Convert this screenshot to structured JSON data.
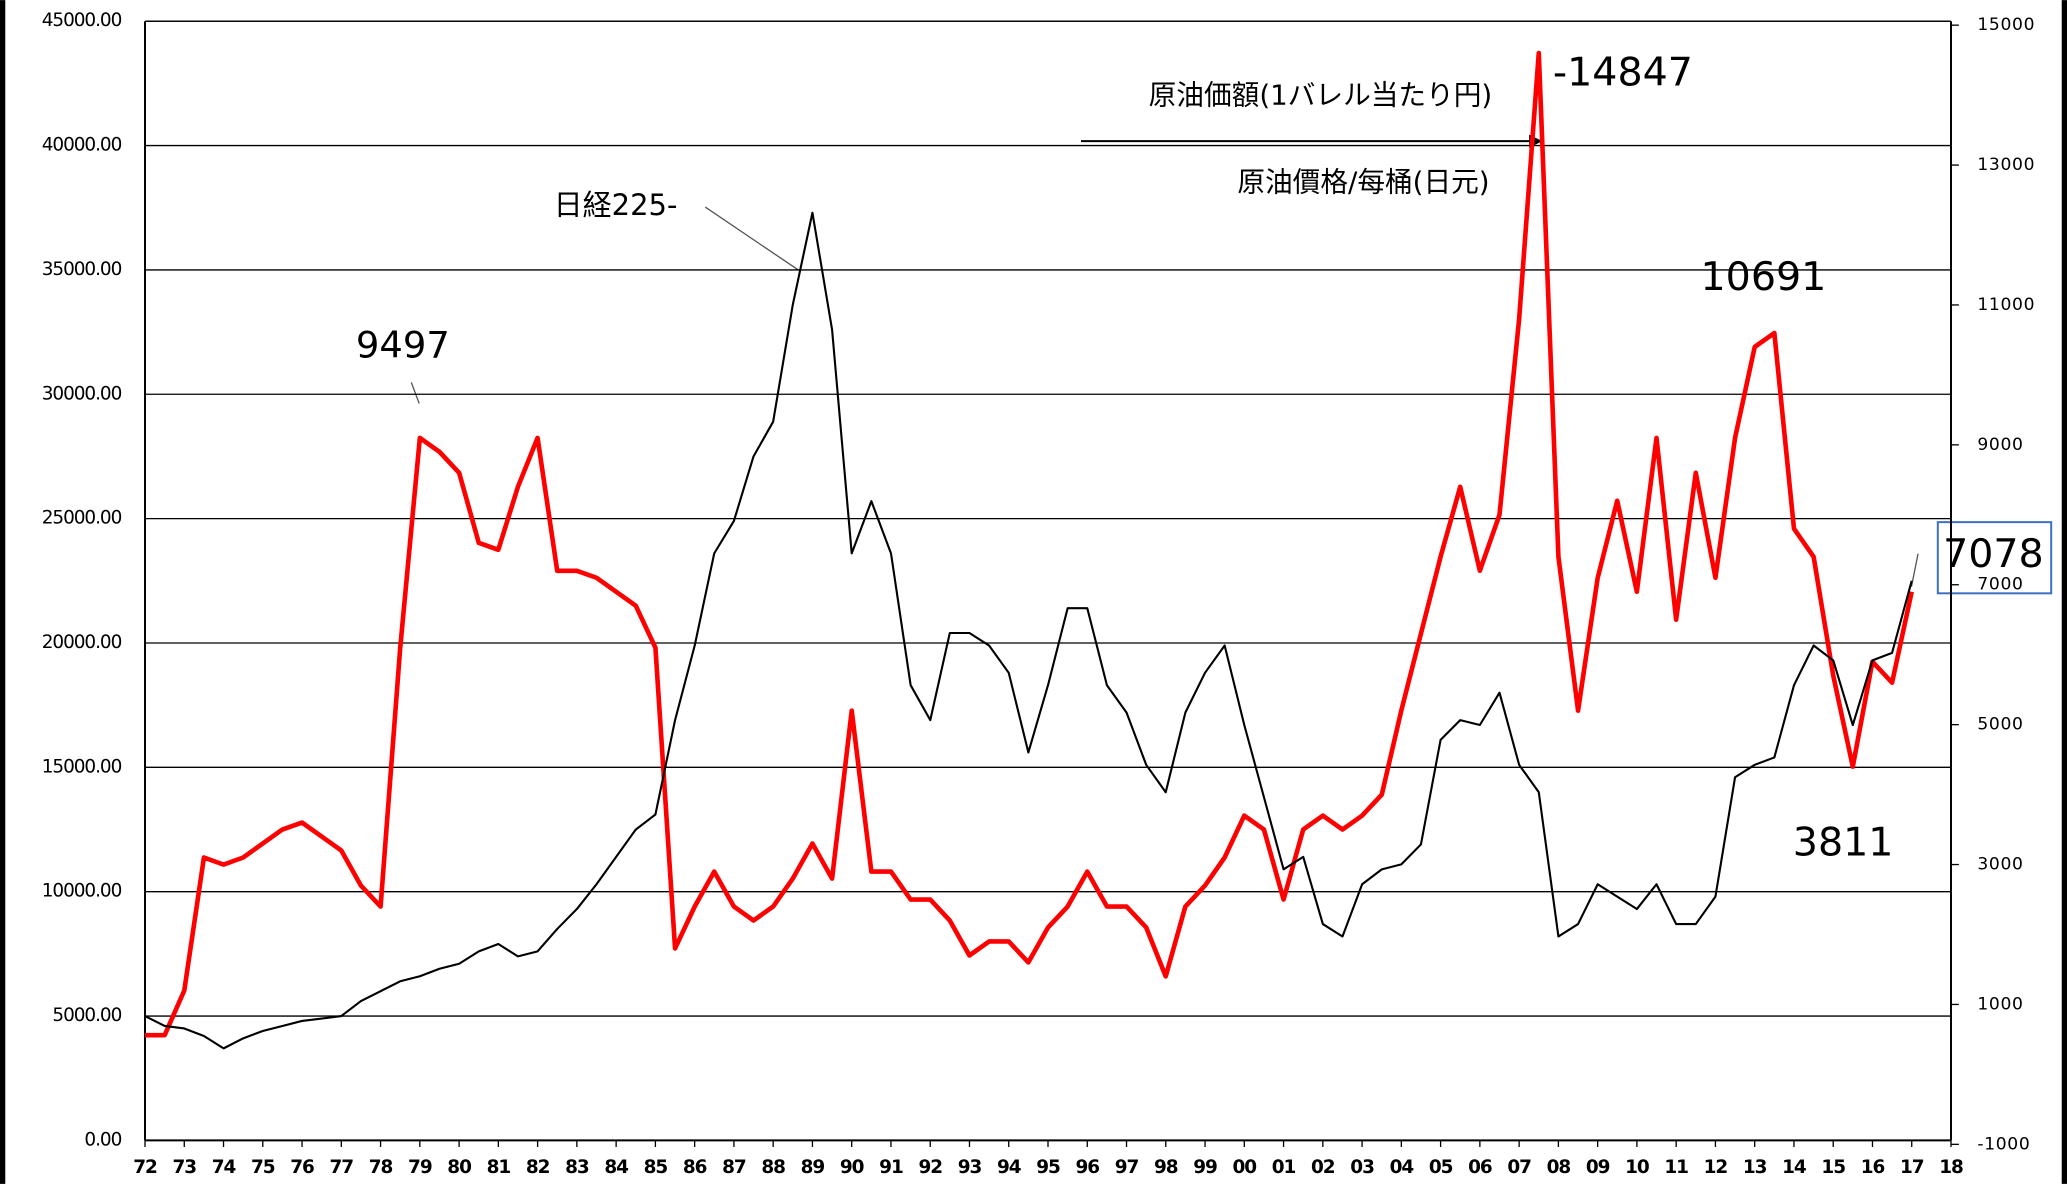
{
  "chart_data": {
    "type": "line",
    "categories": [
      "72",
      null,
      "73",
      null,
      "74",
      null,
      "75",
      null,
      "76",
      null,
      "77",
      null,
      "78",
      null,
      "79",
      null,
      "80",
      null,
      "81",
      null,
      "82",
      null,
      "83",
      null,
      "84",
      null,
      "85",
      null,
      "86",
      null,
      "87",
      null,
      "88",
      null,
      "89",
      null,
      "90",
      null,
      "91",
      null,
      "92",
      null,
      "93",
      null,
      "94",
      null,
      "95",
      null,
      "96",
      null,
      "97",
      null,
      "98",
      null,
      "99",
      null,
      "00",
      null,
      "01",
      null,
      "02",
      null,
      "03",
      null,
      "04",
      null,
      "05",
      null,
      "06",
      null,
      "07",
      null,
      "08",
      null,
      "09",
      null,
      "10",
      null,
      "11",
      null,
      "12",
      null,
      "13",
      null,
      "14",
      null,
      "15",
      null,
      "16",
      null,
      "17",
      null,
      "18"
    ],
    "series": [
      {
        "name": "日経225",
        "color": "#000000",
        "axis": "y",
        "values": [
          5000,
          4600,
          4500,
          4200,
          3700,
          4100,
          4400,
          4600,
          4800,
          4900,
          5000,
          5600,
          6000,
          6400,
          6600,
          6900,
          7100,
          7600,
          7900,
          7400,
          7600,
          8500,
          9300,
          10300,
          11400,
          12500,
          13100,
          16900,
          19900,
          23600,
          24900,
          27500,
          28900,
          33600,
          37300,
          32600,
          23600,
          25700,
          23600,
          18300,
          16900,
          20400,
          20400,
          19900,
          18800,
          15600,
          18300,
          21400,
          21400,
          18300,
          17200,
          15100,
          14000,
          17200,
          18800,
          19900,
          16700,
          13800,
          10900,
          11400,
          8700,
          8200,
          10300,
          10900,
          11100,
          11900,
          16100,
          16900,
          16700,
          18000,
          15100,
          14000,
          8200,
          8700,
          10300,
          9800,
          9300,
          10300,
          8700,
          8700,
          9800,
          14600,
          15100,
          15400,
          18300,
          19900,
          19300,
          16700,
          19300,
          19600,
          22500,
          null,
          null
        ]
      },
      {
        "name": "原油価額(1バレル当たり円)",
        "color": "#ff0000",
        "axis": "y2",
        "values": [
          560,
          560,
          1200,
          3100,
          3000,
          3100,
          3300,
          3500,
          3600,
          3400,
          3200,
          2700,
          2400,
          6100,
          9100,
          8900,
          8600,
          7600,
          7500,
          8400,
          9100,
          7200,
          7200,
          7100,
          6900,
          6700,
          6100,
          1800,
          2400,
          2900,
          2400,
          2200,
          2400,
          2800,
          3300,
          2800,
          5200,
          2900,
          2900,
          2500,
          2500,
          2200,
          1700,
          1900,
          1900,
          1600,
          2100,
          2400,
          2900,
          2400,
          2400,
          2100,
          1400,
          2400,
          2700,
          3100,
          3700,
          3500,
          2500,
          3500,
          3700,
          3500,
          3700,
          4000,
          5200,
          6300,
          7400,
          8400,
          7200,
          8000,
          10800,
          14600,
          7400,
          5200,
          7100,
          8200,
          6900,
          9100,
          6500,
          8600,
          7100,
          9100,
          10400,
          10600,
          7800,
          7400,
          5700,
          4400,
          5900,
          5600,
          6900,
          null,
          null
        ]
      }
    ],
    "annotations": [
      "日経225-",
      "9497",
      "-14847",
      "10691",
      "3811",
      "7078",
      "原油價格/每桶(日元)"
    ],
    "ylim": [
      0,
      45000
    ],
    "yticks": [
      {
        "value": 0,
        "label": "0.00"
      },
      {
        "value": 5000,
        "label": "5000.00"
      },
      {
        "value": 10000,
        "label": "10000.00"
      },
      {
        "value": 15000,
        "label": "15000.00"
      },
      {
        "value": 20000,
        "label": "20000.00"
      },
      {
        "value": 25000,
        "label": "25000.00"
      },
      {
        "value": 30000,
        "label": "30000.00"
      },
      {
        "value": 35000,
        "label": "35000.00"
      },
      {
        "value": 40000,
        "label": "40000.00"
      },
      {
        "value": 45000,
        "label": "45000.00"
      }
    ],
    "y2lim": [
      -1000,
      15000
    ],
    "y2ticks": [
      -1000,
      1000,
      3000,
      5000,
      7000,
      9000,
      11000,
      13000,
      15000
    ],
    "grid": true
  }
}
